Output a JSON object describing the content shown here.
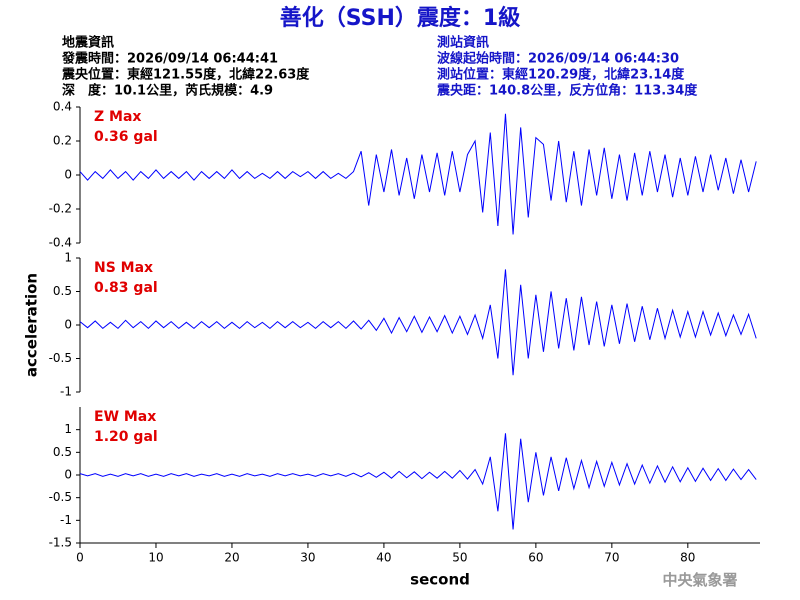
{
  "header": {
    "title": "善化（SSH）震度：1級",
    "left": [
      "地震資訊",
      "發震時間：2026/09/14 06:44:41",
      "震央位置：東經121.55度，北緯22.63度",
      "深　度：10.1公里，芮氏規模：4.9"
    ],
    "right": [
      "測站資訊",
      "波線起始時間：2026/09/14 06:44:30",
      "測站位置：東經120.29度，北緯23.14度",
      "震央距：140.8公里，反方位角：113.34度"
    ],
    "agency": "中央氣象署"
  },
  "chart_data": [
    {
      "type": "line",
      "annotations": [
        "Z Max",
        "0.36 gal"
      ],
      "x": [
        0,
        1,
        2,
        3,
        4,
        5,
        6,
        7,
        8,
        9,
        10,
        11,
        12,
        13,
        14,
        15,
        16,
        17,
        18,
        19,
        20,
        21,
        22,
        23,
        24,
        25,
        26,
        27,
        28,
        29,
        30,
        31,
        32,
        33,
        34,
        35,
        36,
        37,
        38,
        39,
        40,
        41,
        42,
        43,
        44,
        45,
        46,
        47,
        48,
        49,
        50,
        51,
        52,
        53,
        54,
        55,
        56,
        57,
        58,
        59,
        60,
        61,
        62,
        63,
        64,
        65,
        66,
        67,
        68,
        69,
        70,
        71,
        72,
        73,
        74,
        75,
        76,
        77,
        78,
        79,
        80,
        81,
        82,
        83,
        84,
        85,
        86,
        87,
        88,
        89
      ],
      "series": [
        {
          "color": "#0000ff",
          "values": [
            0.02,
            -0.03,
            0.02,
            -0.02,
            0.03,
            -0.02,
            0.02,
            -0.03,
            0.02,
            -0.02,
            0.03,
            -0.02,
            0.02,
            -0.02,
            0.02,
            -0.03,
            0.02,
            -0.02,
            0.02,
            -0.02,
            0.03,
            -0.02,
            0.02,
            -0.02,
            0.01,
            -0.02,
            0.02,
            -0.02,
            0.02,
            -0.01,
            0.02,
            -0.02,
            0.02,
            -0.02,
            0.01,
            -0.02,
            0.02,
            0.14,
            -0.18,
            0.12,
            -0.1,
            0.15,
            -0.12,
            0.1,
            -0.14,
            0.12,
            -0.1,
            0.13,
            -0.12,
            0.14,
            -0.1,
            0.12,
            0.2,
            -0.22,
            0.25,
            -0.3,
            0.36,
            -0.35,
            0.28,
            -0.25,
            0.22,
            0.18,
            -0.15,
            0.2,
            -0.16,
            0.14,
            -0.18,
            0.15,
            -0.12,
            0.16,
            -0.14,
            0.12,
            -0.15,
            0.13,
            -0.12,
            0.14,
            -0.1,
            0.12,
            -0.13,
            0.1,
            -0.12,
            0.11,
            -0.1,
            0.12,
            -0.09,
            0.1,
            -0.11,
            0.09,
            -0.1,
            0.08
          ]
        }
      ],
      "xlim": [
        0,
        89.5
      ],
      "ylim": [
        -0.4,
        0.4
      ],
      "yticks": [
        -0.4,
        -0.2,
        0,
        0.2,
        0.4
      ]
    },
    {
      "type": "line",
      "annotations": [
        "NS Max",
        "0.83 gal"
      ],
      "ylabel": "acceleration",
      "x": [
        0,
        1,
        2,
        3,
        4,
        5,
        6,
        7,
        8,
        9,
        10,
        11,
        12,
        13,
        14,
        15,
        16,
        17,
        18,
        19,
        20,
        21,
        22,
        23,
        24,
        25,
        26,
        27,
        28,
        29,
        30,
        31,
        32,
        33,
        34,
        35,
        36,
        37,
        38,
        39,
        40,
        41,
        42,
        43,
        44,
        45,
        46,
        47,
        48,
        49,
        50,
        51,
        52,
        53,
        54,
        55,
        56,
        57,
        58,
        59,
        60,
        61,
        62,
        63,
        64,
        65,
        66,
        67,
        68,
        69,
        70,
        71,
        72,
        73,
        74,
        75,
        76,
        77,
        78,
        79,
        80,
        81,
        82,
        83,
        84,
        85,
        86,
        87,
        88,
        89
      ],
      "series": [
        {
          "color": "#0000ff",
          "values": [
            0.05,
            -0.04,
            0.06,
            -0.05,
            0.04,
            -0.05,
            0.07,
            -0.04,
            0.05,
            -0.05,
            0.06,
            -0.04,
            0.05,
            -0.05,
            0.04,
            -0.05,
            0.05,
            -0.04,
            0.05,
            -0.05,
            0.04,
            -0.05,
            0.05,
            -0.04,
            0.04,
            -0.05,
            0.05,
            -0.04,
            0.05,
            -0.04,
            0.04,
            -0.05,
            0.05,
            -0.04,
            0.05,
            -0.05,
            0.06,
            -0.06,
            0.07,
            -0.08,
            0.1,
            -0.12,
            0.11,
            -0.1,
            0.13,
            -0.11,
            0.12,
            -0.1,
            0.14,
            -0.12,
            0.13,
            -0.14,
            0.15,
            -0.2,
            0.3,
            -0.5,
            0.83,
            -0.75,
            0.6,
            -0.5,
            0.45,
            -0.4,
            0.5,
            -0.35,
            0.4,
            -0.38,
            0.42,
            -0.3,
            0.35,
            -0.32,
            0.3,
            -0.28,
            0.32,
            -0.25,
            0.28,
            -0.22,
            0.25,
            -0.2,
            0.22,
            -0.18,
            0.2,
            -0.18,
            0.2,
            -0.15,
            0.18,
            -0.16,
            0.15,
            -0.14,
            0.16,
            -0.2
          ]
        }
      ],
      "xlim": [
        0,
        89.5
      ],
      "ylim": [
        -1,
        1
      ],
      "yticks": [
        -1,
        -0.5,
        0,
        0.5,
        1
      ]
    },
    {
      "type": "line",
      "annotations": [
        "EW Max",
        "1.20 gal"
      ],
      "xlabel": "second",
      "x": [
        0,
        1,
        2,
        3,
        4,
        5,
        6,
        7,
        8,
        9,
        10,
        11,
        12,
        13,
        14,
        15,
        16,
        17,
        18,
        19,
        20,
        21,
        22,
        23,
        24,
        25,
        26,
        27,
        28,
        29,
        30,
        31,
        32,
        33,
        34,
        35,
        36,
        37,
        38,
        39,
        40,
        41,
        42,
        43,
        44,
        45,
        46,
        47,
        48,
        49,
        50,
        51,
        52,
        53,
        54,
        55,
        56,
        57,
        58,
        59,
        60,
        61,
        62,
        63,
        64,
        65,
        66,
        67,
        68,
        69,
        70,
        71,
        72,
        73,
        74,
        75,
        76,
        77,
        78,
        79,
        80,
        81,
        82,
        83,
        84,
        85,
        86,
        87,
        88,
        89
      ],
      "series": [
        {
          "color": "#0000ff",
          "values": [
            0.03,
            -0.02,
            0.03,
            -0.03,
            0.02,
            -0.03,
            0.03,
            -0.02,
            0.03,
            -0.03,
            0.02,
            -0.03,
            0.03,
            -0.02,
            0.03,
            -0.03,
            0.02,
            -0.02,
            0.03,
            -0.03,
            0.02,
            -0.03,
            0.03,
            -0.02,
            0.02,
            -0.03,
            0.03,
            -0.02,
            0.03,
            -0.02,
            0.02,
            -0.03,
            0.03,
            -0.02,
            0.03,
            -0.03,
            0.04,
            -0.04,
            0.05,
            -0.05,
            0.06,
            -0.07,
            0.08,
            -0.06,
            0.07,
            -0.08,
            0.06,
            -0.07,
            0.08,
            -0.07,
            0.1,
            -0.09,
            0.12,
            -0.2,
            0.4,
            -0.8,
            0.92,
            -1.2,
            0.8,
            -0.6,
            0.5,
            -0.45,
            0.4,
            -0.35,
            0.38,
            -0.3,
            0.32,
            -0.28,
            0.3,
            -0.25,
            0.28,
            -0.22,
            0.25,
            -0.2,
            0.22,
            -0.18,
            0.2,
            -0.16,
            0.18,
            -0.15,
            0.16,
            -0.14,
            0.15,
            -0.12,
            0.14,
            -0.12,
            0.13,
            -0.1,
            0.12,
            -0.1
          ]
        }
      ],
      "xlim": [
        0,
        89.5
      ],
      "ylim": [
        -1.5,
        1.5
      ],
      "yticks": [
        -1.5,
        -1,
        -0.5,
        0,
        0.5,
        1
      ],
      "xticks": [
        0,
        10,
        20,
        30,
        40,
        50,
        60,
        70,
        80
      ]
    }
  ]
}
